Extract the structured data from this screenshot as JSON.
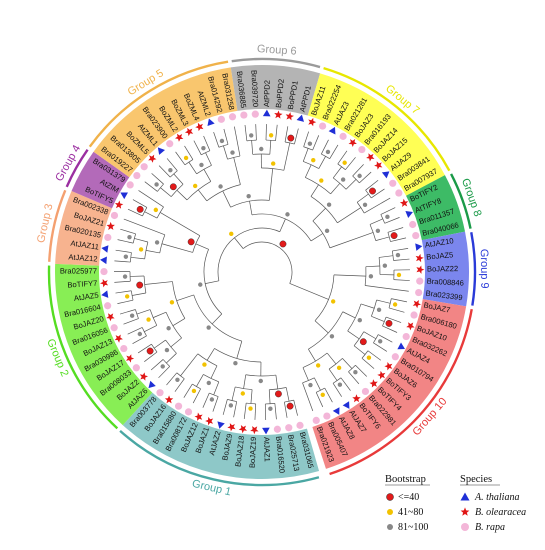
{
  "groups": [
    {
      "label": "Group 1",
      "color": "#4aa7a3",
      "fill": "#8ec8c8"
    },
    {
      "label": "Group 2",
      "color": "#55dd22",
      "fill": "#88ee55"
    },
    {
      "label": "Group 3",
      "color": "#f4a070",
      "fill": "#f7b38f"
    },
    {
      "label": "Group 4",
      "color": "#9b2fa1",
      "fill": "#b36ab9"
    },
    {
      "label": "Group 5",
      "color": "#f0b24a",
      "fill": "#f9c66e"
    },
    {
      "label": "Group 6",
      "color": "#9a9a9a",
      "fill": "#b4b4b4"
    },
    {
      "label": "Group 7",
      "color": "#e7e700",
      "fill": "#ffff55"
    },
    {
      "label": "Group 8",
      "color": "#1a9a48",
      "fill": "#3dbb66"
    },
    {
      "label": "Group 9",
      "color": "#2a3ad8",
      "fill": "#7b86ee"
    },
    {
      "label": "Group 10",
      "color": "#e83a3a",
      "fill": "#f28585"
    }
  ],
  "leaves": [
    {
      "name": "Bra031065",
      "group": 0,
      "species": "rapa"
    },
    {
      "name": "Bra025713",
      "group": 0,
      "species": "rapa"
    },
    {
      "name": "Bra016520",
      "group": 0,
      "species": "rapa"
    },
    {
      "name": "AtJAZ1",
      "group": 0,
      "species": "thaliana"
    },
    {
      "name": "BoJAZ19",
      "group": 0,
      "species": "oleracea"
    },
    {
      "name": "BoJAZ18",
      "group": 0,
      "species": "oleracea"
    },
    {
      "name": "BoJAZ9",
      "group": 0,
      "species": "oleracea"
    },
    {
      "name": "AtJAZ2",
      "group": 0,
      "species": "thaliana"
    },
    {
      "name": "BoJAZ1",
      "group": 0,
      "species": "oleracea"
    },
    {
      "name": "BoJAZ12",
      "group": 0,
      "species": "oleracea"
    },
    {
      "name": "Bra008172",
      "group": 0,
      "species": "rapa"
    },
    {
      "name": "Bra015880",
      "group": 0,
      "species": "rapa"
    },
    {
      "name": "BoJAZ16",
      "group": 0,
      "species": "oleracea"
    },
    {
      "name": "Bra003778",
      "group": 0,
      "species": "rapa"
    },
    {
      "name": "AtJAZ6",
      "group": 1,
      "species": "thaliana"
    },
    {
      "name": "BoJAZ2",
      "group": 1,
      "species": "oleracea"
    },
    {
      "name": "Bra008033",
      "group": 1,
      "species": "rapa"
    },
    {
      "name": "BoJAZ17",
      "group": 1,
      "species": "oleracea"
    },
    {
      "name": "Bra030986",
      "group": 1,
      "species": "rapa"
    },
    {
      "name": "BoJAZ13",
      "group": 1,
      "species": "oleracea"
    },
    {
      "name": "Bra016056",
      "group": 1,
      "species": "rapa"
    },
    {
      "name": "BoJAZ20",
      "group": 1,
      "species": "oleracea"
    },
    {
      "name": "Bra016604",
      "group": 1,
      "species": "rapa"
    },
    {
      "name": "AtJAZ5",
      "group": 1,
      "species": "thaliana"
    },
    {
      "name": "BoTIFY7",
      "group": 1,
      "species": "oleracea"
    },
    {
      "name": "Bra025977",
      "group": 1,
      "species": "rapa"
    },
    {
      "name": "AtJAZ12",
      "group": 2,
      "species": "thaliana"
    },
    {
      "name": "AtJAZ11",
      "group": 2,
      "species": "thaliana"
    },
    {
      "name": "Bra020135",
      "group": 2,
      "species": "rapa"
    },
    {
      "name": "BoJAZ21",
      "group": 2,
      "species": "oleracea"
    },
    {
      "name": "Bra002338",
      "group": 2,
      "species": "rapa"
    },
    {
      "name": "BoTIFY5",
      "group": 3,
      "species": "oleracea"
    },
    {
      "name": "AtZIM",
      "group": 3,
      "species": "thaliana"
    },
    {
      "name": "Bra031379",
      "group": 3,
      "species": "rapa"
    },
    {
      "name": "Bra019227",
      "group": 4,
      "species": "rapa"
    },
    {
      "name": "Bra013805",
      "group": 4,
      "species": "rapa"
    },
    {
      "name": "BoZML5",
      "group": 4,
      "species": "oleracea"
    },
    {
      "name": "AtZML1",
      "group": 4,
      "species": "thaliana"
    },
    {
      "name": "Bra023900",
      "group": 4,
      "species": "rapa"
    },
    {
      "name": "BoZML2",
      "group": 4,
      "species": "oleracea"
    },
    {
      "name": "BoZML3",
      "group": 4,
      "species": "oleracea"
    },
    {
      "name": "BoZML4",
      "group": 4,
      "species": "oleracea"
    },
    {
      "name": "AtZML2",
      "group": 4,
      "species": "thaliana"
    },
    {
      "name": "Bra014292",
      "group": 4,
      "species": "rapa"
    },
    {
      "name": "Bra031258",
      "group": 4,
      "species": "rapa"
    },
    {
      "name": "Bra036885",
      "group": 5,
      "species": "rapa"
    },
    {
      "name": "Bra039720",
      "group": 5,
      "species": "rapa"
    },
    {
      "name": "AtPPD2",
      "group": 5,
      "species": "thaliana"
    },
    {
      "name": "BoPPD2",
      "group": 5,
      "species": "oleracea"
    },
    {
      "name": "BoPPD1",
      "group": 5,
      "species": "oleracea"
    },
    {
      "name": "AtPPD1",
      "group": 5,
      "species": "thaliana"
    },
    {
      "name": "BoJAZ11",
      "group": 6,
      "species": "oleracea"
    },
    {
      "name": "Bra022254",
      "group": 6,
      "species": "rapa"
    },
    {
      "name": "AtJAZ3",
      "group": 6,
      "species": "thaliana"
    },
    {
      "name": "Bra021281",
      "group": 6,
      "species": "rapa"
    },
    {
      "name": "BoJAZ3",
      "group": 6,
      "species": "oleracea"
    },
    {
      "name": "Bra016193",
      "group": 6,
      "species": "rapa"
    },
    {
      "name": "BoJAZ14",
      "group": 6,
      "species": "oleracea"
    },
    {
      "name": "BoJAZ15",
      "group": 6,
      "species": "oleracea"
    },
    {
      "name": "AtJAZ9",
      "group": 6,
      "species": "thaliana"
    },
    {
      "name": "Bra003841",
      "group": 6,
      "species": "rapa"
    },
    {
      "name": "Bra007937",
      "group": 6,
      "species": "rapa"
    },
    {
      "name": "BoTIFY2",
      "group": 7,
      "species": "oleracea"
    },
    {
      "name": "AtTIFY8",
      "group": 7,
      "species": "thaliana"
    },
    {
      "name": "Bra011357",
      "group": 7,
      "species": "rapa"
    },
    {
      "name": "Bra040066",
      "group": 7,
      "species": "rapa"
    },
    {
      "name": "AtJAZ10",
      "group": 8,
      "species": "thaliana"
    },
    {
      "name": "BoJAZ5",
      "group": 8,
      "species": "oleracea"
    },
    {
      "name": "BoJAZ22",
      "group": 8,
      "species": "oleracea"
    },
    {
      "name": "Bra008846",
      "group": 8,
      "species": "rapa"
    },
    {
      "name": "Bra023399",
      "group": 8,
      "species": "rapa"
    },
    {
      "name": "BoJAZ7",
      "group": 9,
      "species": "oleracea"
    },
    {
      "name": "Bra006180",
      "group": 9,
      "species": "rapa"
    },
    {
      "name": "BoJAZ10",
      "group": 9,
      "species": "oleracea"
    },
    {
      "name": "Bra032262",
      "group": 9,
      "species": "rapa"
    },
    {
      "name": "AtJAZ4",
      "group": 9,
      "species": "thaliana"
    },
    {
      "name": "Bra010794",
      "group": 9,
      "species": "rapa"
    },
    {
      "name": "BoJAZ6",
      "group": 9,
      "species": "oleracea"
    },
    {
      "name": "BoTIFY3",
      "group": 9,
      "species": "oleracea"
    },
    {
      "name": "BoTIFY4",
      "group": 9,
      "species": "oleracea"
    },
    {
      "name": "Bra022981",
      "group": 9,
      "species": "rapa"
    },
    {
      "name": "BoTIFY6",
      "group": 9,
      "species": "oleracea"
    },
    {
      "name": "AtJAZ7",
      "group": 9,
      "species": "thaliana"
    },
    {
      "name": "AtJAZ8",
      "group": 9,
      "species": "thaliana"
    },
    {
      "name": "Bra005407",
      "group": 9,
      "species": "rapa"
    },
    {
      "name": "Bra021923",
      "group": 9,
      "species": "rapa"
    }
  ],
  "legend": {
    "bootstrap_title": "Bootstrap",
    "bootstrap_items": [
      {
        "label": "<=40",
        "color": "#e21a1a"
      },
      {
        "label": "41~80",
        "color": "#f2c200"
      },
      {
        "label": "81~100",
        "color": "#888888"
      }
    ],
    "species_title": "Species",
    "species_items": [
      {
        "key": "thaliana",
        "label": "A. thaliana",
        "color": "#1f2fd6"
      },
      {
        "key": "oleracea",
        "label": "B. olearacea",
        "color": "#e01616"
      },
      {
        "key": "rapa",
        "label": "B. rapa",
        "color": "#f3b6d8"
      }
    ]
  }
}
